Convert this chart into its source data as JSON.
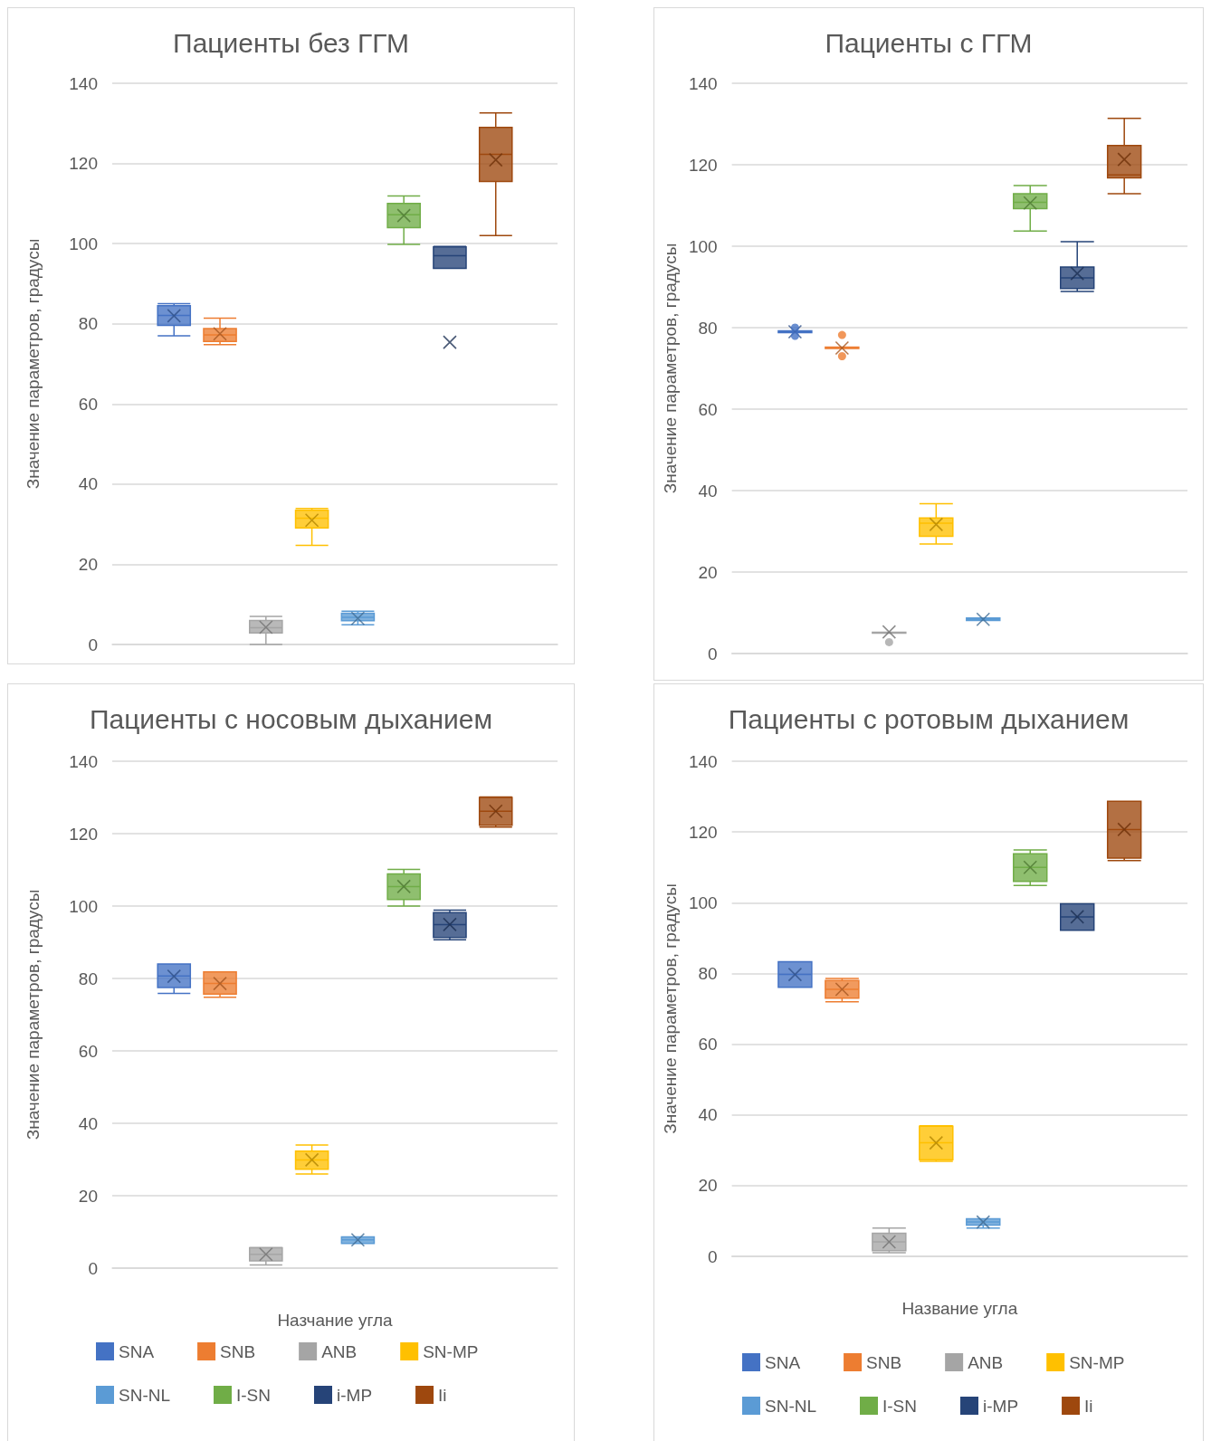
{
  "chart_data": [
    {
      "type": "box",
      "title": "Пациенты без ГГМ",
      "ylabel": "Значение параметров, градусы",
      "categories": [
        null
      ],
      "ylim": [
        0,
        140
      ],
      "yticks": [
        0,
        20,
        40,
        60,
        80,
        100,
        120,
        140
      ],
      "grid": "y",
      "tick_labels": "y",
      "series": [
        {
          "color": "#4472c4",
          "boxes": [
            {
              "low": 77,
              "q1": 79.6,
              "median": 82.1,
              "q3": 84.5,
              "high": 85,
              "mean": 82
            }
          ]
        },
        {
          "color": "#ed7d31",
          "boxes": [
            {
              "low": 74.8,
              "q1": 75.6,
              "median": 77.2,
              "q3": 78.8,
              "high": 81.4,
              "mean": 77.5
            }
          ]
        },
        {
          "color": "#a5a5a5",
          "boxes": [
            {
              "low": 0,
              "q1": 2.9,
              "median": 4.2,
              "q3": 6,
              "high": 7,
              "mean": 4.3
            }
          ]
        },
        {
          "color": "#ffc000",
          "boxes": [
            {
              "low": 24.7,
              "q1": 29.1,
              "median": 31.5,
              "q3": 33.5,
              "high": 33.9,
              "mean": 31
            }
          ]
        },
        {
          "color": "#5b9bd5",
          "boxes": [
            {
              "low": 4.9,
              "q1": 5.9,
              "median": 6.8,
              "q3": 7.8,
              "high": 8.3,
              "mean": 6.5
            }
          ]
        },
        {
          "color": "#70ad47",
          "boxes": [
            {
              "low": 99.8,
              "q1": 104,
              "median": 107.2,
              "q3": 110,
              "high": 111.9,
              "mean": 107
            }
          ]
        },
        {
          "color": "#264478",
          "boxes": [
            {
              "low": 93.8,
              "q1": 93.8,
              "median": 97,
              "q3": 99.2,
              "high": 99.3,
              "mean": 75.4
            }
          ]
        },
        {
          "color": "#9e480e",
          "boxes": [
            {
              "low": 102,
              "q1": 115.5,
              "median": 122.3,
              "q3": 129,
              "high": 132.6,
              "mean": 120.9
            }
          ]
        }
      ]
    },
    {
      "type": "box",
      "title": "Пациенты с ГГМ",
      "ylabel": "Значение параметров, градусы",
      "categories": [
        null
      ],
      "ylim": [
        0,
        140
      ],
      "yticks": [
        0,
        20,
        40,
        60,
        80,
        100,
        120,
        140
      ],
      "grid": "y",
      "tick_labels": "y",
      "series": [
        {
          "color": "#4472c4",
          "boxes": [
            {
              "low": 78.8,
              "q1": 78.8,
              "median": 79,
              "q3": 79.2,
              "high": 79.2,
              "mean": 79,
              "outliers": [
                80,
                78
              ]
            }
          ]
        },
        {
          "color": "#ed7d31",
          "boxes": [
            {
              "low": 74.9,
              "q1": 74.9,
              "median": 75,
              "q3": 75.2,
              "high": 75.2,
              "mean": 75,
              "outliers": [
                78.2,
                73
              ]
            }
          ]
        },
        {
          "color": "#a5a5a5",
          "boxes": [
            {
              "low": 5,
              "q1": 5,
              "median": 5.1,
              "q3": 5.2,
              "high": 5.2,
              "mean": 5.3,
              "outliers": [
                2.8
              ]
            }
          ]
        },
        {
          "color": "#ffc000",
          "boxes": [
            {
              "low": 26.9,
              "q1": 28.8,
              "median": 32,
              "q3": 33.3,
              "high": 36.8,
              "mean": 31.7
            }
          ]
        },
        {
          "color": "#5b9bd5",
          "boxes": [
            {
              "low": 8.1,
              "q1": 8.1,
              "median": 8.4,
              "q3": 8.7,
              "high": 8.7,
              "mean": 8.4
            }
          ]
        },
        {
          "color": "#70ad47",
          "boxes": [
            {
              "low": 103.7,
              "q1": 109.2,
              "median": 110.8,
              "q3": 112.9,
              "high": 114.9,
              "mean": 110.6
            }
          ]
        },
        {
          "color": "#264478",
          "boxes": [
            {
              "low": 88.9,
              "q1": 89.6,
              "median": 92.2,
              "q3": 94.9,
              "high": 101.1,
              "mean": 93.3
            }
          ]
        },
        {
          "color": "#9e480e",
          "boxes": [
            {
              "low": 112.9,
              "q1": 116.8,
              "median": 117.5,
              "q3": 124.7,
              "high": 131.4,
              "mean": 121.3
            }
          ]
        }
      ]
    },
    {
      "type": "box",
      "title": "Пациенты с носовым дыханием",
      "ylabel": "Значение параметров, градусы",
      "xlabel": "Назчание угла",
      "categories": [
        null
      ],
      "ylim": [
        0,
        140
      ],
      "yticks": [
        0,
        20,
        40,
        60,
        80,
        100,
        120,
        140
      ],
      "grid": "y",
      "tick_labels": "y",
      "legend": "bottom",
      "series": [
        {
          "name": "SNA",
          "color": "#4472c4",
          "boxes": [
            {
              "low": 75.9,
              "q1": 77.5,
              "median": 80.7,
              "q3": 84,
              "high": 84,
              "mean": 80.6
            }
          ]
        },
        {
          "name": "SNB",
          "color": "#ed7d31",
          "boxes": [
            {
              "low": 74.8,
              "q1": 75.7,
              "median": 78.6,
              "q3": 81.8,
              "high": 81.8,
              "mean": 78.6
            }
          ]
        },
        {
          "name": "ANB",
          "color": "#a5a5a5",
          "boxes": [
            {
              "low": 0.9,
              "q1": 2,
              "median": 3.8,
              "q3": 5.6,
              "high": 5.7,
              "mean": 3.8
            }
          ]
        },
        {
          "name": "SN-MP",
          "color": "#ffc000",
          "boxes": [
            {
              "low": 26,
              "q1": 27.3,
              "median": 29.9,
              "q3": 32.3,
              "high": 34,
              "mean": 29.9
            }
          ]
        },
        {
          "name": "SN-NL",
          "color": "#5b9bd5",
          "boxes": [
            {
              "low": 6.8,
              "q1": 6.8,
              "median": 7.8,
              "q3": 8.6,
              "high": 8.6,
              "mean": 7.8
            }
          ]
        },
        {
          "name": "I-SN",
          "color": "#70ad47",
          "boxes": [
            {
              "low": 100,
              "q1": 101.8,
              "median": 105.4,
              "q3": 108.9,
              "high": 110.1,
              "mean": 105.4
            }
          ]
        },
        {
          "name": "i-MP",
          "color": "#264478",
          "boxes": [
            {
              "low": 90.7,
              "q1": 91.3,
              "median": 94.9,
              "q3": 98.2,
              "high": 98.9,
              "mean": 94.9
            }
          ]
        },
        {
          "name": "Ii",
          "color": "#9e480e",
          "boxes": [
            {
              "low": 121.8,
              "q1": 122.3,
              "median": 126.2,
              "q3": 130,
              "high": 130.1,
              "mean": 126.2
            }
          ]
        }
      ]
    },
    {
      "type": "box",
      "title": "Пациенты с ротовым дыханием",
      "ylabel": "Значение параметров, градусы",
      "xlabel": "Название угла",
      "categories": [
        null
      ],
      "ylim": [
        0,
        140
      ],
      "yticks": [
        0,
        20,
        40,
        60,
        80,
        100,
        120,
        140
      ],
      "grid": "y",
      "tick_labels": "y",
      "legend": "bottom",
      "series": [
        {
          "name": "SNA",
          "color": "#4472c4",
          "boxes": [
            {
              "low": 76.1,
              "q1": 76.1,
              "median": 79.7,
              "q3": 83.3,
              "high": 83.3,
              "mean": 79.7
            }
          ]
        },
        {
          "name": "SNB",
          "color": "#ed7d31",
          "boxes": [
            {
              "low": 72,
              "q1": 73,
              "median": 75.5,
              "q3": 78,
              "high": 78.6,
              "mean": 75.5
            }
          ]
        },
        {
          "name": "ANB",
          "color": "#a5a5a5",
          "boxes": [
            {
              "low": 1,
              "q1": 1.6,
              "median": 4.1,
              "q3": 6.5,
              "high": 8,
              "mean": 4.1
            }
          ]
        },
        {
          "name": "SN-MP",
          "color": "#ffc000",
          "boxes": [
            {
              "low": 26.9,
              "q1": 27.3,
              "median": 32.1,
              "q3": 36.8,
              "high": 36.9,
              "mean": 32.1
            }
          ]
        },
        {
          "name": "SN-NL",
          "color": "#5b9bd5",
          "boxes": [
            {
              "low": 8,
              "q1": 8.8,
              "median": 9.7,
              "q3": 10.6,
              "high": 10.6,
              "mean": 9.7
            }
          ]
        },
        {
          "name": "I-SN",
          "color": "#70ad47",
          "boxes": [
            {
              "low": 104.9,
              "q1": 106,
              "median": 110,
              "q3": 113.8,
              "high": 114.9,
              "mean": 110
            }
          ]
        },
        {
          "name": "i-MP",
          "color": "#264478",
          "boxes": [
            {
              "low": 92.2,
              "q1": 92.2,
              "median": 96,
              "q3": 99.7,
              "high": 99.7,
              "mean": 96
            }
          ]
        },
        {
          "name": "Ii",
          "color": "#9e480e",
          "boxes": [
            {
              "low": 111.9,
              "q1": 112.6,
              "median": 120.7,
              "q3": 128.7,
              "high": 128.7,
              "mean": 120.7
            }
          ]
        }
      ]
    }
  ]
}
